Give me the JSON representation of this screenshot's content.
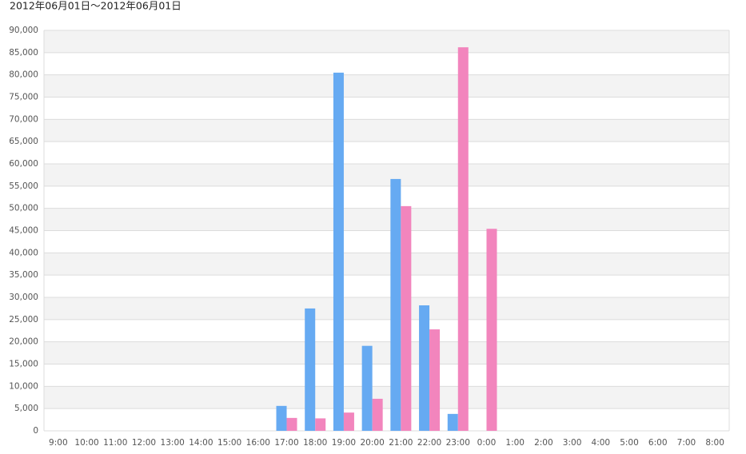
{
  "chart_data": {
    "type": "bar",
    "title": "2012年06月01日〜2012年06月01日",
    "categories": [
      "9:00",
      "10:00",
      "11:00",
      "12:00",
      "13:00",
      "14:00",
      "15:00",
      "16:00",
      "17:00",
      "18:00",
      "19:00",
      "20:00",
      "21:00",
      "22:00",
      "23:00",
      "0:00",
      "1:00",
      "2:00",
      "3:00",
      "4:00",
      "5:00",
      "6:00",
      "7:00",
      "8:00"
    ],
    "series": [
      {
        "color": "#66aaf2",
        "values": [
          0,
          0,
          0,
          0,
          0,
          0,
          0,
          0,
          5600,
          27500,
          80500,
          19100,
          56600,
          28200,
          3800,
          0,
          0,
          0,
          0,
          0,
          0,
          0,
          0,
          0
        ]
      },
      {
        "color": "#f285bd",
        "values": [
          0,
          0,
          0,
          0,
          0,
          0,
          0,
          0,
          2900,
          2800,
          4100,
          7200,
          50500,
          22800,
          86200,
          45400,
          0,
          0,
          0,
          0,
          0,
          0,
          0,
          0
        ]
      }
    ],
    "ylim": [
      0,
      90000
    ],
    "yticks": [
      0,
      {
        "value": 5000,
        "label": "5,000"
      },
      {
        "value": 10000,
        "label": "10,000"
      },
      {
        "value": 15000,
        "label": "15,000"
      },
      {
        "value": 20000,
        "label": "20,000"
      },
      {
        "value": 25000,
        "label": "25,000"
      },
      {
        "value": 30000,
        "label": "30,000"
      },
      {
        "value": 35000,
        "label": "35,000"
      },
      {
        "value": 40000,
        "label": "40,000"
      },
      {
        "value": 45000,
        "label": "45,000"
      },
      {
        "value": 50000,
        "label": "50,000"
      },
      {
        "value": 55000,
        "label": "55,000"
      },
      {
        "value": 60000,
        "label": "60,000"
      },
      {
        "value": 65000,
        "label": "65,000"
      },
      {
        "value": 70000,
        "label": "70,000"
      },
      {
        "value": 75000,
        "label": "75,000"
      },
      {
        "value": 80000,
        "label": "80,000"
      },
      {
        "value": 85000,
        "label": "85,000"
      },
      {
        "value": 90000,
        "label": "90,000"
      }
    ],
    "grid": true
  }
}
